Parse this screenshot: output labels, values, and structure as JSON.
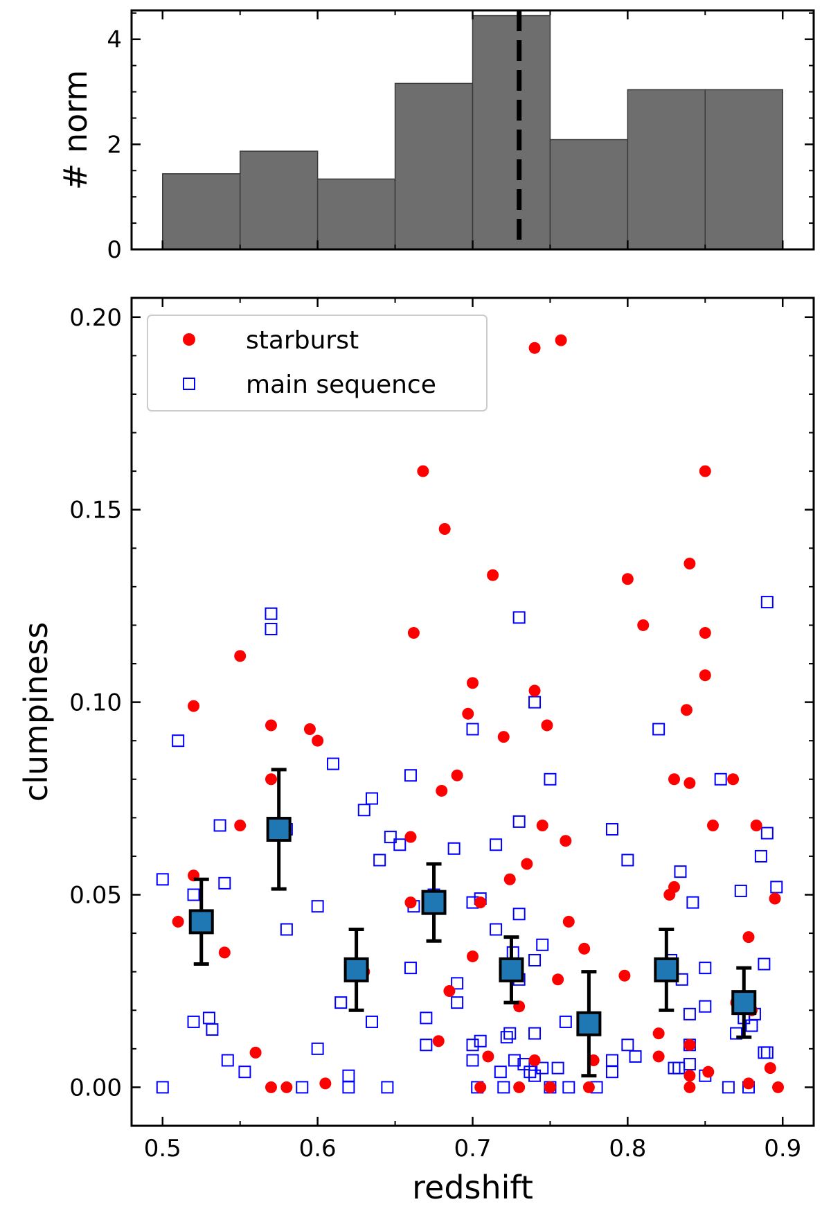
{
  "chart_data": [
    {
      "type": "bar",
      "ylabel": "# norm",
      "bin_edges": [
        0.5,
        0.55,
        0.6,
        0.65,
        0.7,
        0.75,
        0.8,
        0.85,
        0.9
      ],
      "values": [
        1.44,
        1.87,
        1.34,
        3.16,
        4.45,
        2.09,
        3.04,
        3.04
      ],
      "median_line_x": 0.73,
      "xlim": [
        0.48,
        0.92
      ],
      "ylim": [
        0,
        4.55
      ],
      "yticks": [
        "0",
        "2",
        "4"
      ],
      "bar_color": "#6e6e6e",
      "line_color": "#000000"
    },
    {
      "type": "scatter",
      "xlabel": "redshift",
      "ylabel": "clumpiness",
      "xlim": [
        0.48,
        0.92
      ],
      "ylim": [
        -0.01,
        0.205
      ],
      "xticks": [
        "0.5",
        "0.6",
        "0.7",
        "0.8",
        "0.9"
      ],
      "yticks": [
        "0.00",
        "0.05",
        "0.10",
        "0.15",
        "0.20"
      ],
      "legend_position": "top-left",
      "series": [
        {
          "name": "starburst",
          "marker": "filled-circle",
          "color": "#ff0000",
          "points": [
            [
              0.51,
              0.043
            ],
            [
              0.52,
              0.099
            ],
            [
              0.52,
              0.055
            ],
            [
              0.54,
              0.035
            ],
            [
              0.55,
              0.112
            ],
            [
              0.55,
              0.068
            ],
            [
              0.56,
              0.009
            ],
            [
              0.57,
              0.094
            ],
            [
              0.57,
              0.08
            ],
            [
              0.57,
              0.0
            ],
            [
              0.58,
              0.0
            ],
            [
              0.595,
              0.093
            ],
            [
              0.6,
              0.09
            ],
            [
              0.605,
              0.001
            ],
            [
              0.63,
              0.03
            ],
            [
              0.66,
              0.065
            ],
            [
              0.66,
              0.048
            ],
            [
              0.662,
              0.118
            ],
            [
              0.668,
              0.16
            ],
            [
              0.678,
              0.012
            ],
            [
              0.68,
              0.077
            ],
            [
              0.682,
              0.145
            ],
            [
              0.685,
              0.025
            ],
            [
              0.69,
              0.081
            ],
            [
              0.697,
              0.097
            ],
            [
              0.7,
              0.105
            ],
            [
              0.7,
              0.034
            ],
            [
              0.705,
              0.048
            ],
            [
              0.705,
              0.0
            ],
            [
              0.71,
              0.008
            ],
            [
              0.713,
              0.133
            ],
            [
              0.72,
              0.091
            ],
            [
              0.724,
              0.054
            ],
            [
              0.73,
              0.021
            ],
            [
              0.73,
              0.0
            ],
            [
              0.735,
              0.058
            ],
            [
              0.74,
              0.192
            ],
            [
              0.74,
              0.103
            ],
            [
              0.74,
              0.007
            ],
            [
              0.745,
              0.068
            ],
            [
              0.748,
              0.094
            ],
            [
              0.75,
              0.0
            ],
            [
              0.755,
              0.028
            ],
            [
              0.757,
              0.194
            ],
            [
              0.76,
              0.064
            ],
            [
              0.762,
              0.043
            ],
            [
              0.772,
              0.036
            ],
            [
              0.775,
              0.0
            ],
            [
              0.778,
              0.007
            ],
            [
              0.798,
              0.029
            ],
            [
              0.8,
              0.132
            ],
            [
              0.81,
              0.12
            ],
            [
              0.82,
              0.014
            ],
            [
              0.82,
              0.008
            ],
            [
              0.827,
              0.05
            ],
            [
              0.83,
              0.052
            ],
            [
              0.83,
              0.08
            ],
            [
              0.84,
              0.136
            ],
            [
              0.838,
              0.098
            ],
            [
              0.84,
              0.079
            ],
            [
              0.84,
              0.011
            ],
            [
              0.84,
              0.003
            ],
            [
              0.84,
              0.0
            ],
            [
              0.85,
              0.16
            ],
            [
              0.85,
              0.118
            ],
            [
              0.85,
              0.107
            ],
            [
              0.852,
              0.004
            ],
            [
              0.855,
              0.068
            ],
            [
              0.868,
              0.08
            ],
            [
              0.87,
              0.022
            ],
            [
              0.878,
              0.039
            ],
            [
              0.878,
              0.001
            ],
            [
              0.88,
              0.02
            ],
            [
              0.883,
              0.068
            ],
            [
              0.892,
              0.005
            ],
            [
              0.895,
              0.049
            ],
            [
              0.897,
              0.0
            ]
          ]
        },
        {
          "name": "main sequence",
          "marker": "open-square",
          "color": "#0000ff",
          "points": [
            [
              0.5,
              0.054
            ],
            [
              0.5,
              0.0
            ],
            [
              0.51,
              0.09
            ],
            [
              0.52,
              0.05
            ],
            [
              0.52,
              0.017
            ],
            [
              0.53,
              0.018
            ],
            [
              0.532,
              0.015
            ],
            [
              0.537,
              0.068
            ],
            [
              0.54,
              0.053
            ],
            [
              0.542,
              0.007
            ],
            [
              0.553,
              0.004
            ],
            [
              0.57,
              0.123
            ],
            [
              0.57,
              0.119
            ],
            [
              0.58,
              0.067
            ],
            [
              0.58,
              0.041
            ],
            [
              0.59,
              0.0
            ],
            [
              0.6,
              0.047
            ],
            [
              0.6,
              0.01
            ],
            [
              0.61,
              0.084
            ],
            [
              0.615,
              0.022
            ],
            [
              0.62,
              0.003
            ],
            [
              0.62,
              0.0
            ],
            [
              0.63,
              0.072
            ],
            [
              0.635,
              0.075
            ],
            [
              0.635,
              0.017
            ],
            [
              0.64,
              0.059
            ],
            [
              0.645,
              0.0
            ],
            [
              0.647,
              0.065
            ],
            [
              0.653,
              0.063
            ],
            [
              0.66,
              0.081
            ],
            [
              0.66,
              0.031
            ],
            [
              0.662,
              0.047
            ],
            [
              0.67,
              0.018
            ],
            [
              0.67,
              0.011
            ],
            [
              0.675,
              0.05
            ],
            [
              0.688,
              0.062
            ],
            [
              0.69,
              0.027
            ],
            [
              0.69,
              0.022
            ],
            [
              0.7,
              0.093
            ],
            [
              0.7,
              0.048
            ],
            [
              0.7,
              0.011
            ],
            [
              0.7,
              0.007
            ],
            [
              0.703,
              0.0
            ],
            [
              0.705,
              0.049
            ],
            [
              0.705,
              0.012
            ],
            [
              0.715,
              0.063
            ],
            [
              0.715,
              0.041
            ],
            [
              0.718,
              0.004
            ],
            [
              0.72,
              0.0
            ],
            [
              0.722,
              0.013
            ],
            [
              0.724,
              0.014
            ],
            [
              0.726,
              0.035
            ],
            [
              0.727,
              0.007
            ],
            [
              0.73,
              0.122
            ],
            [
              0.73,
              0.069
            ],
            [
              0.73,
              0.045
            ],
            [
              0.73,
              0.028
            ],
            [
              0.733,
              0.006
            ],
            [
              0.737,
              0.004
            ],
            [
              0.74,
              0.1
            ],
            [
              0.74,
              0.033
            ],
            [
              0.74,
              0.014
            ],
            [
              0.74,
              0.003
            ],
            [
              0.745,
              0.037
            ],
            [
              0.745,
              0.005
            ],
            [
              0.75,
              0.08
            ],
            [
              0.75,
              0.0
            ],
            [
              0.755,
              0.005
            ],
            [
              0.76,
              0.017
            ],
            [
              0.762,
              0.0
            ],
            [
              0.78,
              0.0
            ],
            [
              0.79,
              0.067
            ],
            [
              0.79,
              0.007
            ],
            [
              0.79,
              0.004
            ],
            [
              0.8,
              0.059
            ],
            [
              0.8,
              0.011
            ],
            [
              0.805,
              0.008
            ],
            [
              0.82,
              0.093
            ],
            [
              0.828,
              0.033
            ],
            [
              0.83,
              0.005
            ],
            [
              0.833,
              0.005
            ],
            [
              0.834,
              0.056
            ],
            [
              0.835,
              0.028
            ],
            [
              0.84,
              0.019
            ],
            [
              0.84,
              0.006
            ],
            [
              0.84,
              0.011
            ],
            [
              0.842,
              0.048
            ],
            [
              0.85,
              0.031
            ],
            [
              0.85,
              0.021
            ],
            [
              0.85,
              0.003
            ],
            [
              0.86,
              0.08
            ],
            [
              0.865,
              0.0
            ],
            [
              0.87,
              0.014
            ],
            [
              0.873,
              0.051
            ],
            [
              0.875,
              0.018
            ],
            [
              0.878,
              0.0
            ],
            [
              0.88,
              0.016
            ],
            [
              0.882,
              0.019
            ],
            [
              0.886,
              0.06
            ],
            [
              0.888,
              0.032
            ],
            [
              0.888,
              0.009
            ],
            [
              0.89,
              0.126
            ],
            [
              0.89,
              0.066
            ],
            [
              0.89,
              0.009
            ],
            [
              0.896,
              0.052
            ]
          ]
        },
        {
          "name": "",
          "marker": "filled-square-errorbar",
          "color": "#1f77b4",
          "points": [
            [
              0.525,
              0.043,
              0.011
            ],
            [
              0.575,
              0.067,
              0.0155
            ],
            [
              0.625,
              0.0305,
              0.0105
            ],
            [
              0.675,
              0.048,
              0.01
            ],
            [
              0.725,
              0.0305,
              0.0085
            ],
            [
              0.775,
              0.0165,
              0.0135
            ],
            [
              0.825,
              0.0305,
              0.0105
            ],
            [
              0.875,
              0.022,
              0.009
            ]
          ]
        }
      ]
    }
  ]
}
